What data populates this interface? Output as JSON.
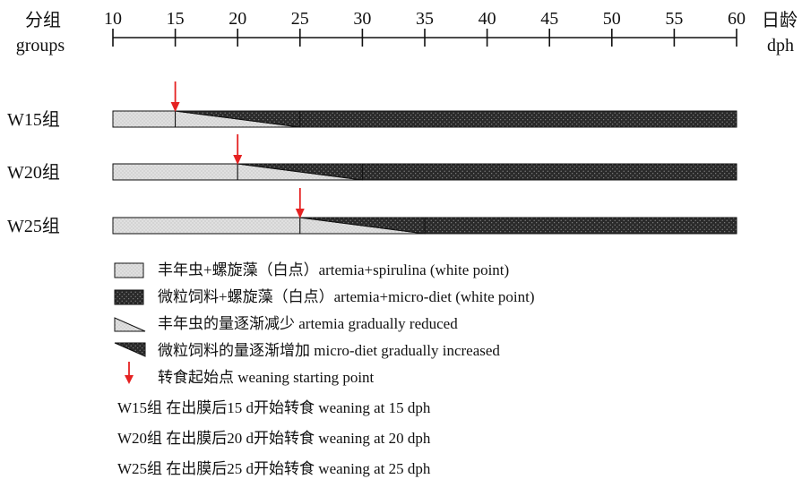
{
  "header": {
    "groups_cn": "分组",
    "groups_en": "groups",
    "age_cn": "日龄",
    "age_en": "dph"
  },
  "axis": {
    "ticks": [
      10,
      15,
      20,
      25,
      30,
      35,
      40,
      45,
      50,
      55,
      60
    ],
    "min": 10,
    "max": 60
  },
  "groups": [
    {
      "label": "W15组",
      "weaning_start": 15,
      "transition_end": 25,
      "end": 60
    },
    {
      "label": "W20组",
      "weaning_start": 20,
      "transition_end": 30,
      "end": 60
    },
    {
      "label": "W25组",
      "weaning_start": 25,
      "transition_end": 35,
      "end": 60
    }
  ],
  "legend": {
    "artemia": "丰年虫+螺旋藻（白点）artemia+spirulina (white point)",
    "microdiet": "微粒饲料+螺旋藻（白点）artemia+micro-diet (white point)",
    "artemia_reduce": "丰年虫的量逐渐减少 artemia gradually reduced",
    "microdiet_increase": "微粒饲料的量逐渐增加 micro-diet gradually increased",
    "weaning_point": "转食起始点 weaning starting point"
  },
  "notes": [
    "W15组 在出膜后15 d开始转食 weaning at 15 dph",
    "W20组 在出膜后20 d开始转食 weaning at 20 dph",
    "W25组 在出膜后25 d开始转食 weaning at 25 dph"
  ],
  "colors": {
    "artemia_fill": "#cfcfcf",
    "microdiet_fill": "#2e2e2e",
    "arrow": "#e52222",
    "outline": "#111111"
  }
}
